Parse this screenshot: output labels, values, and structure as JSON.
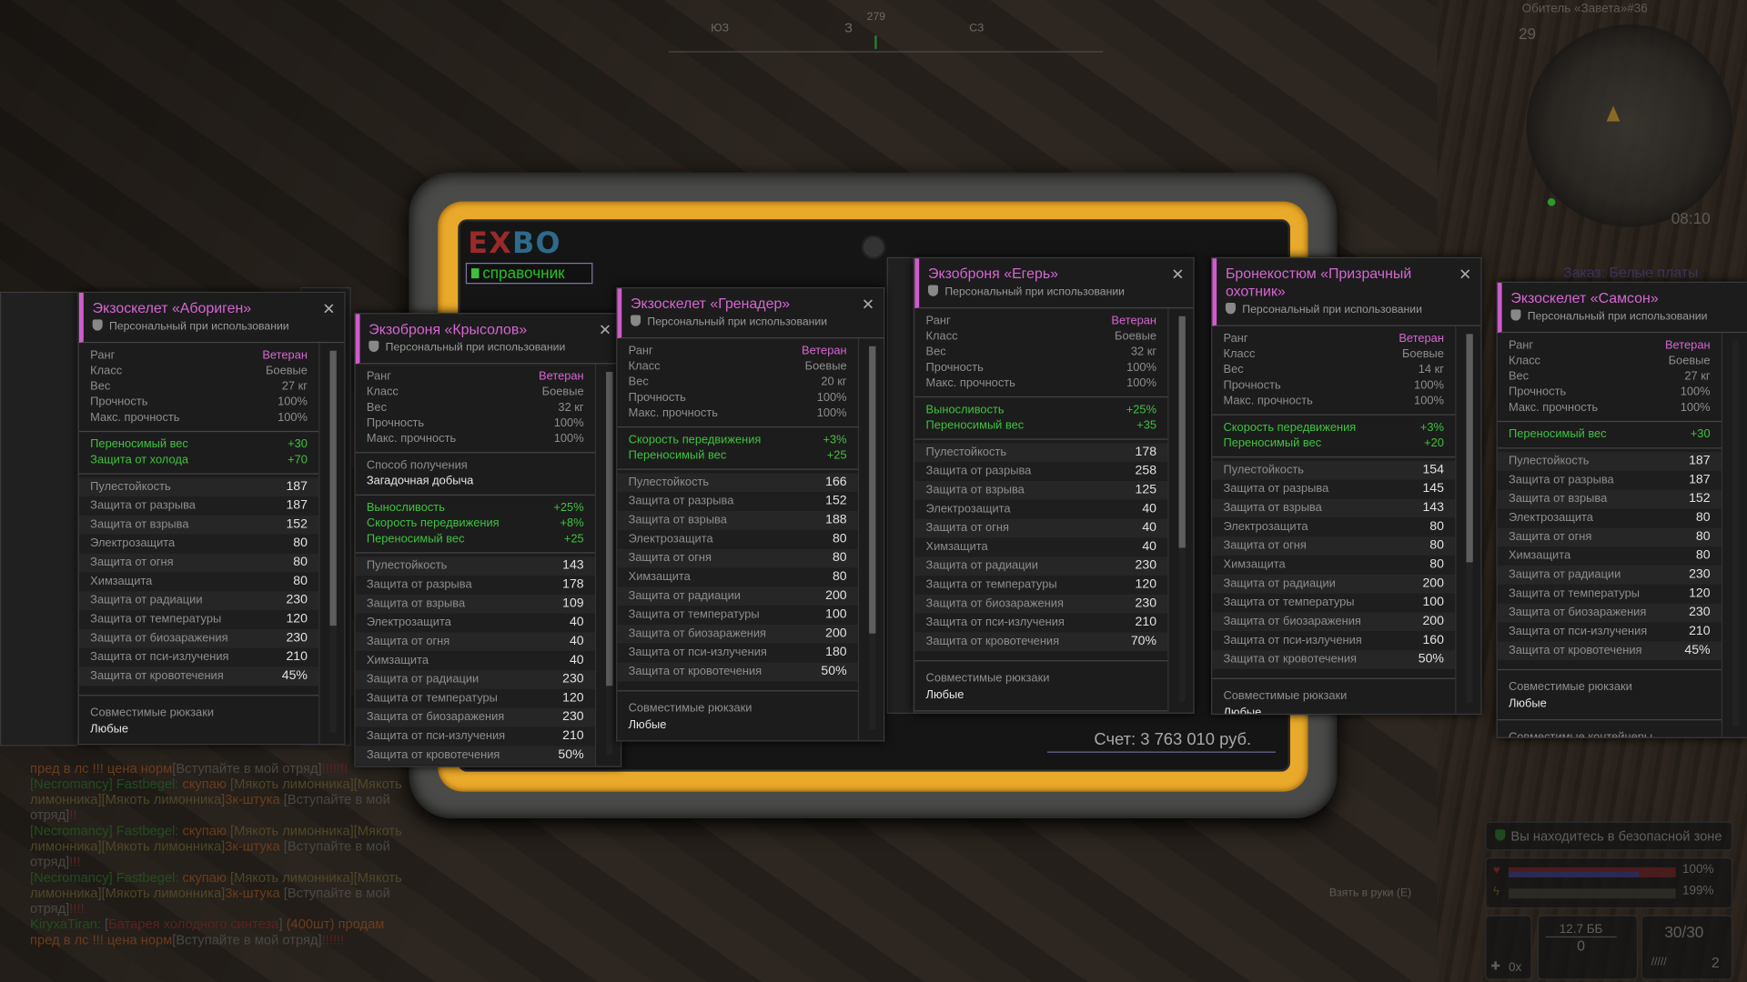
{
  "device": {
    "logo": "EXBO",
    "tab_label": "справочник",
    "score": "Счет: 3 763 010 руб."
  },
  "compass": {
    "heading": "279",
    "labels": [
      "ЮЗ",
      "З",
      "СЗ"
    ]
  },
  "minimap": {
    "location": "Обитель «Завета»#36",
    "level": "29",
    "time": "08:10",
    "quest": "Заказ: Белые платы"
  },
  "hud": {
    "safe_zone": "Вы находитесь в безопасной зоне",
    "health": "100%",
    "stamina": "199%",
    "ammo_type": "12.7 ББ",
    "ammo_reserve": "0",
    "magazine": "30/30",
    "grenades": "2",
    "medkits": "0x",
    "pickup_hint": "Взять в руки (E)"
  },
  "colors": {
    "accent": "#d666d2",
    "bonus": "#3fc13f",
    "device_yellow": "#e9a92a"
  },
  "chat": [
    [
      {
        "t": "пред в лс !!! цена норм",
        "c": "o"
      },
      {
        "t": "[Вступайте в мой отряд]",
        "c": ""
      },
      {
        "t": "!!!!!!!",
        "c": "r"
      }
    ],
    [
      {
        "t": "[Necromancy]  Fastbegel: ",
        "c": "g"
      },
      {
        "t": "скупаю ",
        "c": "o"
      },
      {
        "t": "[Мякоть лимонника][Мякоть лимонника][Мякоть лимонника]",
        "c": "y"
      },
      {
        "t": "3к-штука ",
        "c": "o"
      },
      {
        "t": "[Вступайте в мой отряд]",
        "c": ""
      },
      {
        "t": "!!",
        "c": "r"
      }
    ],
    [
      {
        "t": "[Necromancy]  Fastbegel: ",
        "c": "g"
      },
      {
        "t": "скупаю ",
        "c": "o"
      },
      {
        "t": "[Мякоть лимонника][Мякоть лимонника][Мякоть лимонника]",
        "c": "y"
      },
      {
        "t": "3к-штука ",
        "c": "o"
      },
      {
        "t": "[Вступайте в мой отряд]",
        "c": ""
      },
      {
        "t": "!!!",
        "c": "r"
      }
    ],
    [
      {
        "t": "[Necromancy]  Fastbegel: ",
        "c": "g"
      },
      {
        "t": "скупаю ",
        "c": "o"
      },
      {
        "t": "[Мякоть лимонника][Мякоть лимонника][Мякоть лимонника]",
        "c": "y"
      },
      {
        "t": "3к-штука ",
        "c": "o"
      },
      {
        "t": "[Вступайте в мой отряд]",
        "c": ""
      },
      {
        "t": "!!!!",
        "c": "r"
      }
    ],
    [
      {
        "t": " KiryxaTiran: ",
        "c": "g"
      },
      {
        "t": "[",
        "c": ""
      },
      {
        "t": "Батарея холодного синтеза",
        "c": "r"
      },
      {
        "t": "] ",
        "c": ""
      },
      {
        "t": "(400шт) продам пред в лс !!! цена норм",
        "c": "o"
      },
      {
        "t": "[Вступайте в мой отряд]",
        "c": ""
      },
      {
        "t": "!!!!!!",
        "c": "r"
      }
    ]
  ],
  "stat_labels": [
    "Пулестойкость",
    "Защита от разрыва",
    "Защита от взрыва",
    "Электрозащита",
    "Защита от огня",
    "Химзащита",
    "Защита от радиации",
    "Защита от температуры",
    "Защита от биозаражения",
    "Защита от пси-излучения",
    "Защита от кровотечения"
  ],
  "base_labels": [
    "Ранг",
    "Класс",
    "Вес",
    "Прочность",
    "Макс. прочность"
  ],
  "panels": [
    {
      "title": "Экзоскелет «Абориген»",
      "subtitle": "Персональный при использовании",
      "base": [
        "Ветеран",
        "Боевые",
        "27 кг",
        "100%",
        "100%"
      ],
      "bonuses": [
        [
          "Переносимый вес",
          "+30"
        ],
        [
          "Защита от холода",
          "+70"
        ]
      ],
      "stats": [
        "187",
        "187",
        "152",
        "80",
        "80",
        "80",
        "230",
        "120",
        "230",
        "210",
        "45%"
      ],
      "compat": [
        [
          "Совместимые рюкзаки",
          "Любые"
        ]
      ]
    },
    {
      "title": "Экзоброня «Крысолов»",
      "subtitle": "Персональный при использовании",
      "base": [
        "Ветеран",
        "Боевые",
        "32 кг",
        "100%",
        "100%"
      ],
      "acquisition": [
        "Способ получения",
        "Загадочная добыча"
      ],
      "bonuses": [
        [
          "Выносливость",
          "+25%"
        ],
        [
          "Скорость передвижения",
          "+8%"
        ],
        [
          "Переносимый вес",
          "+25"
        ]
      ],
      "stats": [
        "143",
        "178",
        "109",
        "40",
        "40",
        "40",
        "230",
        "120",
        "230",
        "210",
        "50%"
      ],
      "compat": []
    },
    {
      "title": "Экзоскелет «Гренадер»",
      "subtitle": "Персональный при использовании",
      "base": [
        "Ветеран",
        "Боевые",
        "20 кг",
        "100%",
        "100%"
      ],
      "bonuses": [
        [
          "Скорость передвижения",
          "+3%"
        ],
        [
          "Переносимый вес",
          "+25"
        ]
      ],
      "stats": [
        "166",
        "152",
        "188",
        "80",
        "80",
        "80",
        "200",
        "100",
        "200",
        "180",
        "50%"
      ],
      "compat": [
        [
          "Совместимые рюкзаки",
          "Любые"
        ]
      ]
    },
    {
      "title": "Экзоброня «Егерь»",
      "subtitle": "Персональный при использовании",
      "base": [
        "Ветеран",
        "Боевые",
        "32 кг",
        "100%",
        "100%"
      ],
      "bonuses": [
        [
          "Выносливость",
          "+25%"
        ],
        [
          "Переносимый вес",
          "+35"
        ]
      ],
      "stats": [
        "178",
        "258",
        "125",
        "40",
        "40",
        "40",
        "230",
        "120",
        "230",
        "210",
        "70%"
      ],
      "compat": [
        [
          "Совместимые рюкзаки",
          "Любые"
        ]
      ]
    },
    {
      "title": "Бронекостюм «Призрачный охотник»",
      "subtitle": "Персональный при использовании",
      "base": [
        "Ветеран",
        "Боевые",
        "14 кг",
        "100%",
        "100%"
      ],
      "bonuses": [
        [
          "Скорость передвижения",
          "+3%"
        ],
        [
          "Переносимый вес",
          "+20"
        ]
      ],
      "stats": [
        "154",
        "145",
        "143",
        "80",
        "80",
        "80",
        "200",
        "100",
        "200",
        "160",
        "50%"
      ],
      "compat": [
        [
          "Совместимые рюкзаки",
          "Любые"
        ]
      ]
    },
    {
      "title": "Экзоскелет «Самсон»",
      "subtitle": "Персональный при использовании",
      "base": [
        "Ветеран",
        "Боевые",
        "27 кг",
        "100%",
        "100%"
      ],
      "bonuses": [
        [
          "Переносимый вес",
          "+30"
        ]
      ],
      "stats": [
        "187",
        "187",
        "152",
        "80",
        "80",
        "80",
        "230",
        "120",
        "230",
        "210",
        "45%"
      ],
      "compat": [
        [
          "Совместимые рюкзаки",
          "Любые"
        ],
        [
          "Совместимые контейнеры",
          ""
        ]
      ]
    }
  ]
}
